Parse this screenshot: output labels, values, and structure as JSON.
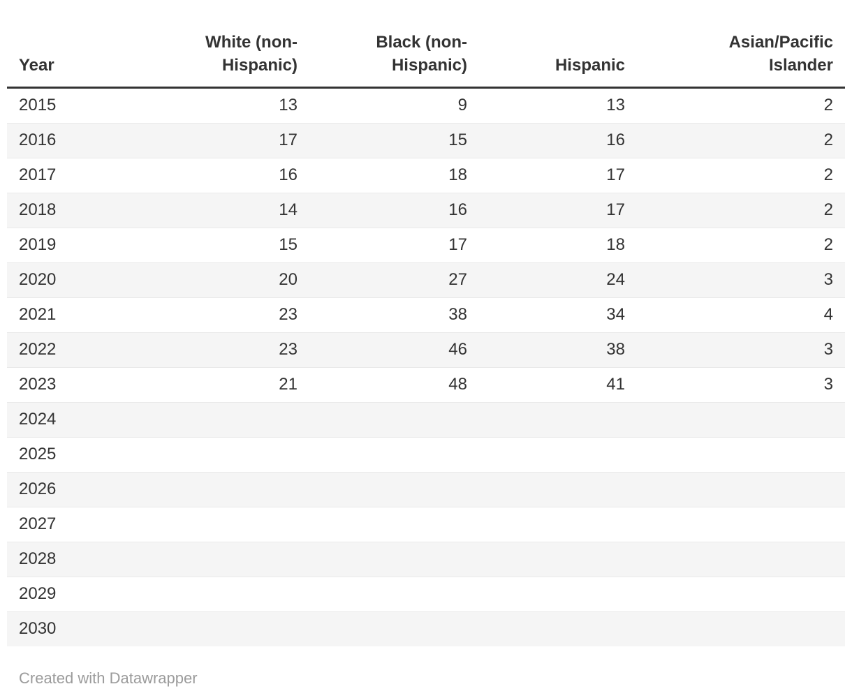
{
  "table": {
    "columns": [
      {
        "label": "Year",
        "align": "left"
      },
      {
        "label": "White (non-Hispanic)",
        "align": "right"
      },
      {
        "label": "Black (non-Hispanic)",
        "align": "right"
      },
      {
        "label": "Hispanic",
        "align": "right"
      },
      {
        "label": "Asian/Pacific Islander",
        "align": "right"
      }
    ],
    "rows": [
      [
        "2015",
        "13",
        "9",
        "13",
        "2"
      ],
      [
        "2016",
        "17",
        "15",
        "16",
        "2"
      ],
      [
        "2017",
        "16",
        "18",
        "17",
        "2"
      ],
      [
        "2018",
        "14",
        "16",
        "17",
        "2"
      ],
      [
        "2019",
        "15",
        "17",
        "18",
        "2"
      ],
      [
        "2020",
        "20",
        "27",
        "24",
        "3"
      ],
      [
        "2021",
        "23",
        "38",
        "34",
        "4"
      ],
      [
        "2022",
        "23",
        "46",
        "38",
        "3"
      ],
      [
        "2023",
        "21",
        "48",
        "41",
        "3"
      ],
      [
        "2024",
        "",
        "",
        "",
        ""
      ],
      [
        "2025",
        "",
        "",
        "",
        ""
      ],
      [
        "2026",
        "",
        "",
        "",
        ""
      ],
      [
        "2027",
        "",
        "",
        "",
        ""
      ],
      [
        "2028",
        "",
        "",
        "",
        ""
      ],
      [
        "2029",
        "",
        "",
        "",
        ""
      ],
      [
        "2030",
        "",
        "",
        "",
        ""
      ]
    ]
  },
  "chart_data": {
    "type": "table",
    "title": "",
    "columns": [
      "Year",
      "White (non-Hispanic)",
      "Black (non-Hispanic)",
      "Hispanic",
      "Asian/Pacific Islander"
    ],
    "categories": [
      2015,
      2016,
      2017,
      2018,
      2019,
      2020,
      2021,
      2022,
      2023,
      2024,
      2025,
      2026,
      2027,
      2028,
      2029,
      2030
    ],
    "series": [
      {
        "name": "White (non-Hispanic)",
        "values": [
          13,
          17,
          16,
          14,
          15,
          20,
          23,
          23,
          21,
          null,
          null,
          null,
          null,
          null,
          null,
          null
        ]
      },
      {
        "name": "Black (non-Hispanic)",
        "values": [
          9,
          15,
          18,
          16,
          17,
          27,
          38,
          46,
          48,
          null,
          null,
          null,
          null,
          null,
          null,
          null
        ]
      },
      {
        "name": "Hispanic",
        "values": [
          13,
          16,
          17,
          17,
          18,
          24,
          34,
          38,
          41,
          null,
          null,
          null,
          null,
          null,
          null,
          null
        ]
      },
      {
        "name": "Asian/Pacific Islander",
        "values": [
          2,
          2,
          2,
          2,
          2,
          3,
          4,
          3,
          3,
          null,
          null,
          null,
          null,
          null,
          null,
          null
        ]
      }
    ],
    "layout": {
      "striped_rows": true,
      "header_rule": true
    }
  },
  "footer": {
    "attribution": "Created with Datawrapper"
  },
  "colors": {
    "text": "#333333",
    "header_rule": "#333333",
    "stripe": "#f5f5f5",
    "row_divider": "#e9e9e9",
    "footer_text": "#9b9b9b",
    "background": "#ffffff"
  }
}
